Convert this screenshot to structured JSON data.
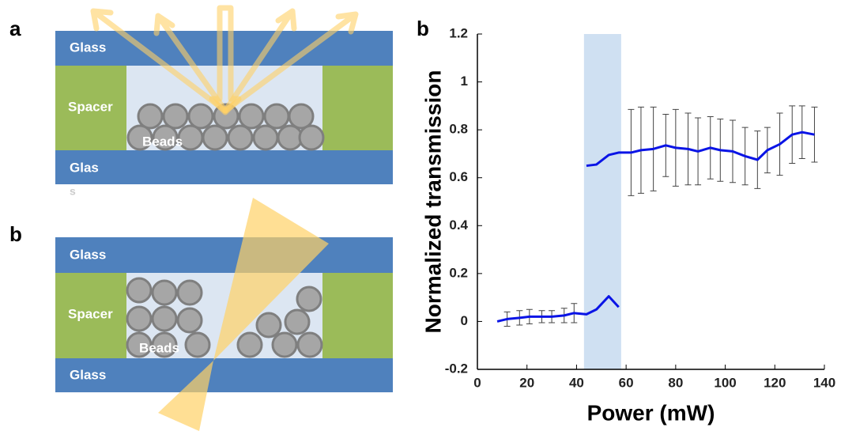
{
  "panel_labels": [
    "a",
    "b",
    "b"
  ],
  "diagram_a": {
    "labels": [
      "Glass",
      "Spacer",
      "Beads",
      "Glas",
      "s"
    ]
  },
  "diagram_b": {
    "labels": [
      "Glass",
      "Spacer",
      "Beads",
      "Glass"
    ]
  },
  "chart_data": {
    "type": "line",
    "xlabel": "Power (mW)",
    "ylabel": "Normalized transmission",
    "xlim": [
      0,
      140
    ],
    "xticks": [
      0,
      20,
      40,
      60,
      80,
      100,
      120,
      140
    ],
    "ylim": [
      -0.2,
      1.2
    ],
    "yticks": [
      -0.2,
      0,
      0.2,
      0.4,
      0.6,
      0.8,
      1,
      1.2
    ],
    "highlight_xrange": [
      43,
      58
    ],
    "highlight_color": "#cfe0f2",
    "error_color": "#444444",
    "series": [
      {
        "color": "#0a14e6",
        "x": [
          8,
          12,
          17,
          21,
          26,
          30,
          35,
          39,
          44,
          48,
          53,
          57
        ],
        "values": [
          0,
          0.01,
          0.015,
          0.02,
          0.02,
          0.02,
          0.025,
          0.035,
          0.03,
          0.05,
          0.105,
          0.06
        ],
        "errors": [
          null,
          0.03,
          0.03,
          0.03,
          0.025,
          0.025,
          0.03,
          0.04,
          null,
          null,
          null,
          null
        ]
      },
      {
        "color": "#0a14e6",
        "x": [
          44,
          48,
          53,
          57,
          62,
          66,
          71,
          76,
          80,
          85,
          89,
          94,
          98,
          103,
          108,
          113,
          117,
          122,
          127,
          131,
          136
        ],
        "values": [
          0.65,
          0.655,
          0.695,
          0.705,
          0.705,
          0.715,
          0.72,
          0.735,
          0.725,
          0.72,
          0.71,
          0.725,
          0.715,
          0.71,
          0.69,
          0.675,
          0.715,
          0.74,
          0.78,
          0.79,
          0.78
        ],
        "errors": [
          null,
          null,
          null,
          null,
          0.18,
          0.18,
          0.175,
          0.13,
          0.16,
          0.15,
          0.14,
          0.13,
          0.13,
          0.13,
          0.12,
          0.12,
          0.095,
          0.13,
          0.12,
          0.11,
          0.115
        ]
      }
    ]
  }
}
